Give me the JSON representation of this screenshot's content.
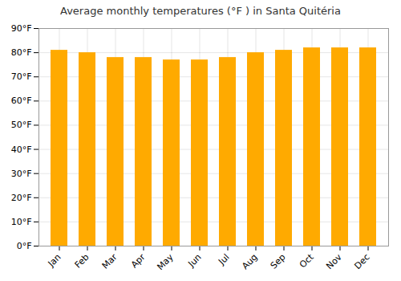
{
  "chart_data": {
    "type": "bar",
    "title": "Average monthly temperatures (°F ) in Santa Quitéria",
    "categories": [
      "Jan",
      "Feb",
      "Mar",
      "Apr",
      "May",
      "Jun",
      "Jul",
      "Aug",
      "Sep",
      "Oct",
      "Nov",
      "Dec"
    ],
    "values": [
      81,
      80,
      78,
      78,
      77,
      77,
      78,
      80,
      81,
      82,
      82,
      82
    ],
    "color": "#FFAA00",
    "ylim": [
      0,
      90
    ],
    "yticks": [
      {
        "value": 0,
        "label": "0°F"
      },
      {
        "value": 10,
        "label": "10°F"
      },
      {
        "value": 20,
        "label": "20°F"
      },
      {
        "value": 30,
        "label": "30°F"
      },
      {
        "value": 40,
        "label": "40°F"
      },
      {
        "value": 50,
        "label": "50°F"
      },
      {
        "value": 60,
        "label": "60°F"
      },
      {
        "value": 70,
        "label": "70°F"
      },
      {
        "value": 80,
        "label": "80°F"
      },
      {
        "value": 90,
        "label": "90°F"
      }
    ],
    "grid": true
  }
}
